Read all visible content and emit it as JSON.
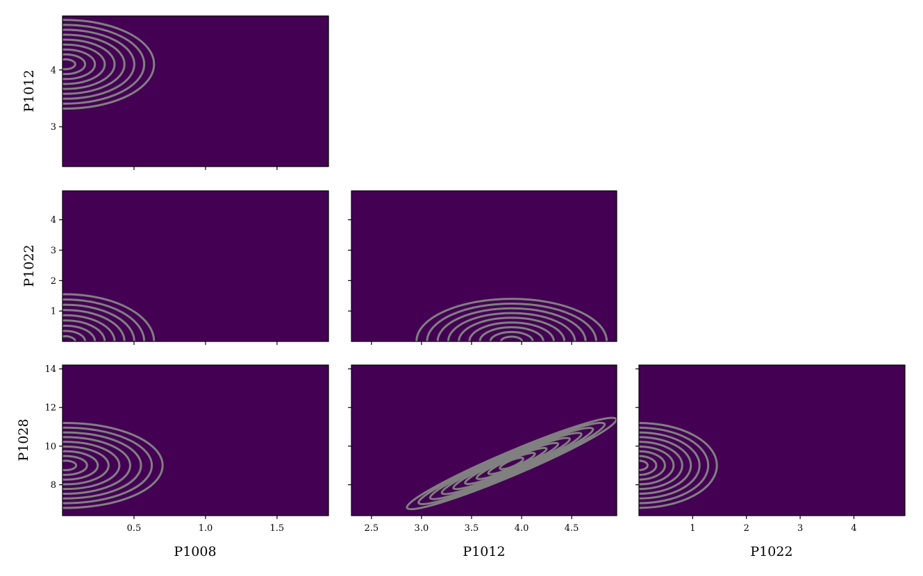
{
  "chart_data": {
    "type": "contour",
    "description_layout": "lower-triangle corner plot",
    "colors": {
      "background": "#440154",
      "levels": [
        "#481a6c",
        "#46327e",
        "#3b528b",
        "#2c728e",
        "#21918c",
        "#28ae80",
        "#5ec962",
        "#addc30",
        "#fde725"
      ],
      "contour_line": "#808080"
    },
    "variables": [
      "P1008",
      "P1012",
      "P1022",
      "P1028"
    ],
    "ranges": {
      "P1008": [
        0.0,
        1.86
      ],
      "P1012": [
        2.3,
        4.95
      ],
      "P1022": [
        0.0,
        4.95
      ],
      "P1028": [
        6.4,
        14.2
      ]
    },
    "ticks": {
      "P1008": [
        0.5,
        1.0,
        1.5
      ],
      "P1012_x": [
        2.5,
        3.0,
        3.5,
        4.0,
        4.5
      ],
      "P1012_y": [
        3,
        4
      ],
      "P1022_x": [
        1,
        2,
        3,
        4
      ],
      "P1022_y": [
        1,
        2,
        3,
        4
      ],
      "P1028": [
        8,
        10,
        12,
        14
      ]
    },
    "tick_labels": {
      "P1008": [
        "0.5",
        "1.0",
        "1.5"
      ],
      "P1012_x": [
        "2.5",
        "3.0",
        "3.5",
        "4.0",
        "4.5"
      ],
      "P1012_y": [
        "3",
        "4"
      ],
      "P1022_x": [
        "1",
        "2",
        "3",
        "4"
      ],
      "P1022_y": [
        "1",
        "2",
        "3",
        "4"
      ],
      "P1028": [
        "8",
        "10",
        "12",
        "14"
      ]
    },
    "panels": [
      {
        "id": "p1008-p1012",
        "x": "P1008",
        "y": "P1012",
        "peak": [
          0.02,
          4.1
        ],
        "spread": [
          0.62,
          0.78
        ],
        "tilt": 0.0
      },
      {
        "id": "p1008-p1022",
        "x": "P1008",
        "y": "P1022",
        "peak": [
          0.02,
          0.0
        ],
        "spread": [
          0.62,
          1.55
        ],
        "tilt": 0.0
      },
      {
        "id": "p1012-p1022",
        "x": "P1012",
        "y": "P1022",
        "peak": [
          3.9,
          0.0
        ],
        "spread": [
          0.95,
          1.4
        ],
        "tilt": 0.0
      },
      {
        "id": "p1008-p1028",
        "x": "P1008",
        "y": "P1028",
        "peak": [
          0.02,
          9.0
        ],
        "spread": [
          0.68,
          2.2
        ],
        "tilt": 0.0
      },
      {
        "id": "p1012-p1028",
        "x": "P1012",
        "y": "P1028",
        "peak": [
          3.9,
          9.1
        ],
        "spread": [
          1.1,
          0.22
        ],
        "tilt": 2.2
      },
      {
        "id": "p1022-p1028",
        "x": "P1022",
        "y": "P1028",
        "peak": [
          0.0,
          9.0
        ],
        "spread": [
          1.45,
          2.2
        ],
        "tilt": 0.0
      }
    ]
  },
  "labels": {
    "x_bottom_left": "P1008",
    "x_bottom_middle": "P1012",
    "x_bottom_right": "P1022",
    "y_top": "P1012",
    "y_middle": "P1022",
    "y_bottom": "P1028"
  }
}
